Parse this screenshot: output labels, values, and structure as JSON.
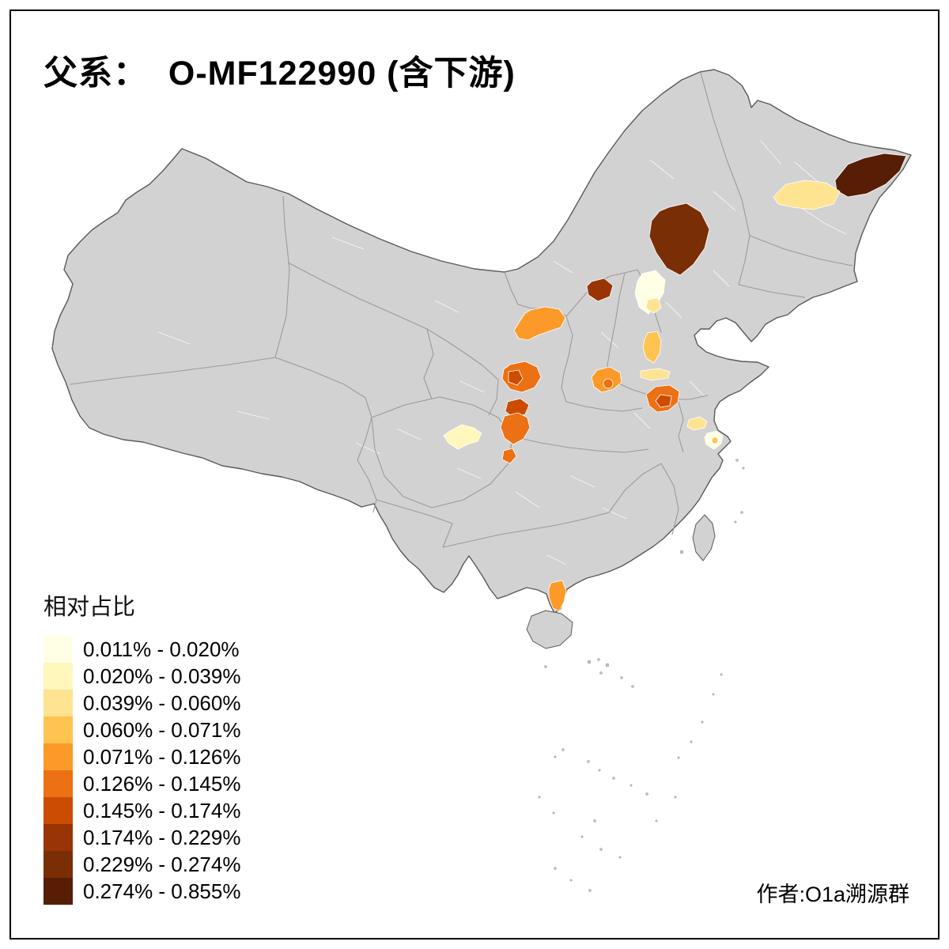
{
  "title": "父系：  O-MF122990 (含下游)",
  "credit": "作者:O1a溯源群",
  "legend": {
    "title": "相对占比",
    "entries": [
      {
        "range": "0.011% - 0.020%",
        "color": "#FFFFE5"
      },
      {
        "range": "0.020% - 0.039%",
        "color": "#FFF7BC"
      },
      {
        "range": "0.039% - 0.060%",
        "color": "#FEE391"
      },
      {
        "range": "0.060% - 0.071%",
        "color": "#FEC44F"
      },
      {
        "range": "0.071% - 0.126%",
        "color": "#FB9A29"
      },
      {
        "range": "0.126% - 0.145%",
        "color": "#EC7014"
      },
      {
        "range": "0.145% - 0.174%",
        "color": "#CC4C02"
      },
      {
        "range": "0.174% - 0.229%",
        "color": "#993404"
      },
      {
        "range": "0.229% - 0.274%",
        "color": "#7A2E05"
      },
      {
        "range": "0.274% - 0.855%",
        "color": "#571E05"
      }
    ]
  },
  "map": {
    "land_color": "#D2D2D2",
    "outline_color": "#5A5A5A",
    "province_border_color": "#9B9B9B",
    "prefecture_border_color": "#FFFFFF",
    "regions": [
      {
        "id": "far-northeast",
        "color": "#571E05"
      },
      {
        "id": "northeast-plain",
        "color": "#FEE391"
      },
      {
        "id": "southeast-inner-mongolia",
        "color": "#7A2E05"
      },
      {
        "id": "northwest-hebei",
        "color": "#993404"
      },
      {
        "id": "beijing-area",
        "color": "#FFFFE5"
      },
      {
        "id": "beijing-south",
        "color": "#FEE391"
      },
      {
        "id": "north-shaanxi",
        "color": "#FB9A29"
      },
      {
        "id": "central-shaanxi",
        "color": "#EC7014"
      },
      {
        "id": "central-shaanxi-dark",
        "color": "#CC4C02"
      },
      {
        "id": "south-shaanxi-dark",
        "color": "#CC4C02"
      },
      {
        "id": "south-shaanxi",
        "color": "#EC7014"
      },
      {
        "id": "ne-chongqing",
        "color": "#EC7014"
      },
      {
        "id": "central-henan",
        "color": "#FB9A29"
      },
      {
        "id": "central-henan-dark",
        "color": "#EC7014"
      },
      {
        "id": "west-shandong",
        "color": "#FEC44F"
      },
      {
        "id": "southwest-shandong-strip",
        "color": "#FEE391"
      },
      {
        "id": "south-shandong",
        "color": "#EC7014"
      },
      {
        "id": "south-shandong-dark",
        "color": "#CC4C02"
      },
      {
        "id": "central-jiangsu",
        "color": "#FEE391"
      },
      {
        "id": "south-jiangsu",
        "color": "#FFFFE5"
      },
      {
        "id": "south-jiangsu-dot",
        "color": "#FEC44F"
      },
      {
        "id": "chengdu-plain",
        "color": "#FFF7BC"
      },
      {
        "id": "leizhou-peninsula",
        "color": "#FB9A29"
      }
    ]
  }
}
